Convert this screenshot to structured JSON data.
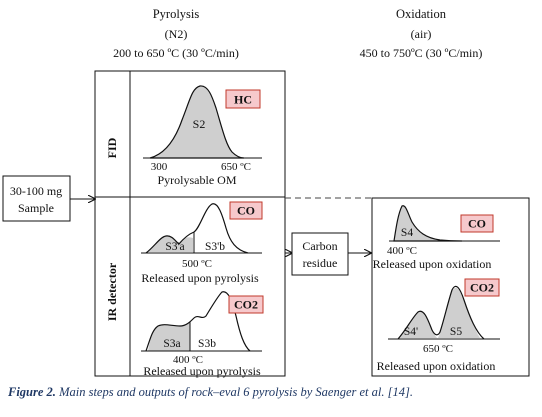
{
  "headers": {
    "pyrolysis": {
      "title": "Pyrolysis",
      "gas": "(N2)",
      "temp": "200 to 650 ºC (30 ºC/min)"
    },
    "oxidation": {
      "title": "Oxidation",
      "gas": "(air)",
      "temp": "450 to 750ºC (30 ºC/min)"
    }
  },
  "sample": {
    "line1": "30-100 mg",
    "line2": "Sample"
  },
  "detectors": {
    "fid": "FID",
    "ir": "IR detector"
  },
  "fid_panel": {
    "badge": "HC",
    "peak": "S2",
    "t_start": "300",
    "t_end": "650 ºC",
    "caption": "Pyrolysable OM"
  },
  "co_pyro_panel": {
    "badge": "CO",
    "peak_a": "S3'a",
    "peak_b": "S3'b",
    "temp": "500 ºC",
    "caption": "Released upon pyrolysis"
  },
  "co2_pyro_panel": {
    "badge": "CO2",
    "peak_a": "S3a",
    "peak_b": "S3b",
    "temp": "400 ºC",
    "caption": "Released upon pyrolysis"
  },
  "carbon_residue": {
    "line1": "Carbon",
    "line2": "residue"
  },
  "co_ox_panel": {
    "badge": "CO",
    "peak": "S4",
    "temp": "400 ºC",
    "caption": "Released upon oxidation"
  },
  "co2_ox_panel": {
    "badge": "CO2",
    "peak_a": "S4'",
    "peak_b": "S5",
    "temp": "650 ºC",
    "caption": "Released upon oxidation"
  },
  "figure_caption": {
    "label": "Figure 2.",
    "text": " Main steps and outputs of rock–eval 6 pyrolysis by Saenger et al. [14]."
  },
  "colors": {
    "badge_fill": "#f6c9cc",
    "badge_stroke": "#c0392b",
    "shade": "#cfcfcf",
    "caption": "#1f3864"
  }
}
